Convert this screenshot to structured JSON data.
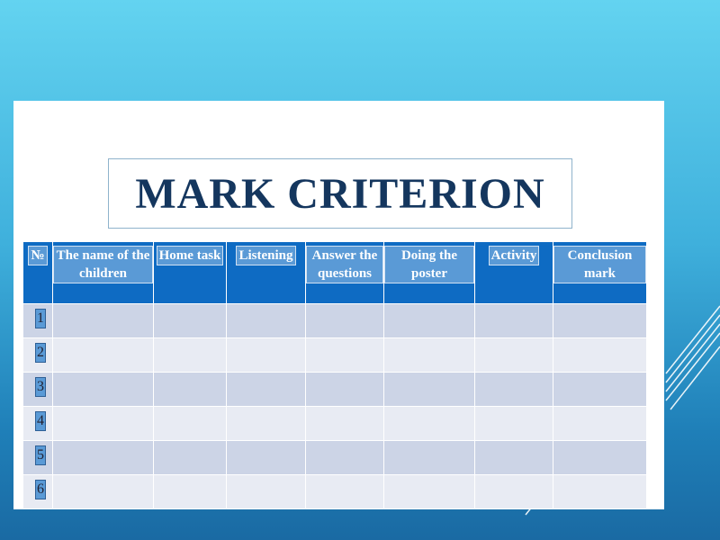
{
  "slide": {
    "title": "MARK CRITERION",
    "colors": {
      "header": "#0e6bc3",
      "row_dark": "#ccd4e6",
      "row_light": "#e8ebf3",
      "title": "#14365e"
    }
  },
  "table": {
    "headers": [
      "№",
      "The name of the children",
      "Home task",
      "Listening",
      "Answer the questions",
      "Doing the poster",
      "Activity",
      "Conclusion mark"
    ],
    "rows": [
      "1",
      "2",
      "3",
      "4",
      "5",
      "6"
    ]
  }
}
